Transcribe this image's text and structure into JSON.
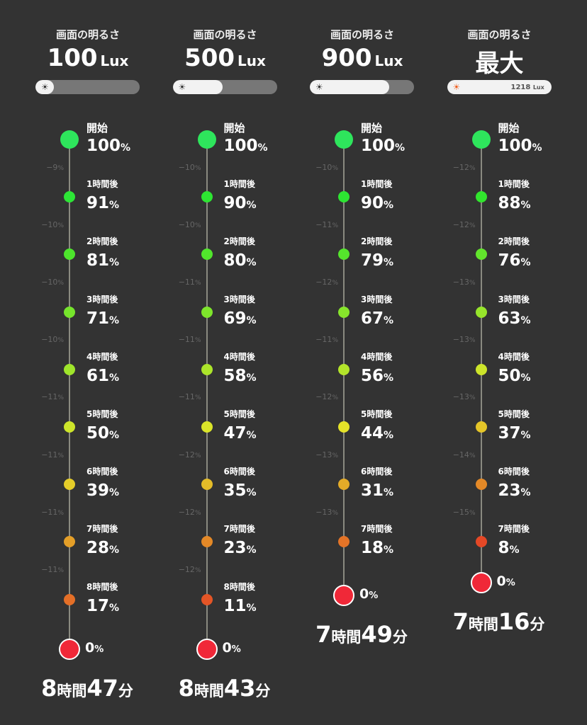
{
  "percent_unit": "%",
  "hour_unit": "時間",
  "minute_unit": "分",
  "columns": [
    {
      "label": "画面の明るさ",
      "value": "100",
      "unit": "Lux",
      "steps": [
        {
          "label": "開始",
          "value": "100"
        },
        {
          "label": "1時間後",
          "value": "91"
        },
        {
          "label": "2時間後",
          "value": "81"
        },
        {
          "label": "3時間後",
          "value": "71"
        },
        {
          "label": "4時間後",
          "value": "61"
        },
        {
          "label": "5時間後",
          "value": "50"
        },
        {
          "label": "6時間後",
          "value": "39"
        },
        {
          "label": "7時間後",
          "value": "28"
        },
        {
          "label": "8時間後",
          "value": "17"
        }
      ],
      "end": "0",
      "drops": [
        "−9",
        "−10",
        "−10",
        "−10",
        "−11",
        "−11",
        "−11",
        "−11"
      ],
      "duration": {
        "hours": "8",
        "minutes": "47"
      }
    },
    {
      "label": "画面の明るさ",
      "value": "500",
      "unit": "Lux",
      "steps": [
        {
          "label": "開始",
          "value": "100"
        },
        {
          "label": "1時間後",
          "value": "90"
        },
        {
          "label": "2時間後",
          "value": "80"
        },
        {
          "label": "3時間後",
          "value": "69"
        },
        {
          "label": "4時間後",
          "value": "58"
        },
        {
          "label": "5時間後",
          "value": "47"
        },
        {
          "label": "6時間後",
          "value": "35"
        },
        {
          "label": "7時間後",
          "value": "23"
        },
        {
          "label": "8時間後",
          "value": "11"
        }
      ],
      "end": "0",
      "drops": [
        "−10",
        "−10",
        "−11",
        "−11",
        "−11",
        "−12",
        "−12",
        "−12"
      ],
      "duration": {
        "hours": "8",
        "minutes": "43"
      }
    },
    {
      "label": "画面の明るさ",
      "value": "900",
      "unit": "Lux",
      "steps": [
        {
          "label": "開始",
          "value": "100"
        },
        {
          "label": "1時間後",
          "value": "90"
        },
        {
          "label": "2時間後",
          "value": "79"
        },
        {
          "label": "3時間後",
          "value": "67"
        },
        {
          "label": "4時間後",
          "value": "56"
        },
        {
          "label": "5時間後",
          "value": "44"
        },
        {
          "label": "6時間後",
          "value": "31"
        },
        {
          "label": "7時間後",
          "value": "18"
        }
      ],
      "end": "0",
      "drops": [
        "−10",
        "−11",
        "−12",
        "−11",
        "−12",
        "−13",
        "−13"
      ],
      "duration": {
        "hours": "7",
        "minutes": "49"
      }
    },
    {
      "label": "画面の明るさ",
      "value": "最大",
      "slider_value": "1218",
      "slider_unit": "Lux",
      "steps": [
        {
          "label": "開始",
          "value": "100"
        },
        {
          "label": "1時間後",
          "value": "88"
        },
        {
          "label": "2時間後",
          "value": "76"
        },
        {
          "label": "3時間後",
          "value": "63"
        },
        {
          "label": "4時間後",
          "value": "50"
        },
        {
          "label": "5時間後",
          "value": "37"
        },
        {
          "label": "6時間後",
          "value": "23"
        },
        {
          "label": "7時間後",
          "value": "8"
        }
      ],
      "end": "0",
      "drops": [
        "−12",
        "−12",
        "−13",
        "−13",
        "−13",
        "−14",
        "−15"
      ],
      "duration": {
        "hours": "7",
        "minutes": "16"
      }
    }
  ]
}
